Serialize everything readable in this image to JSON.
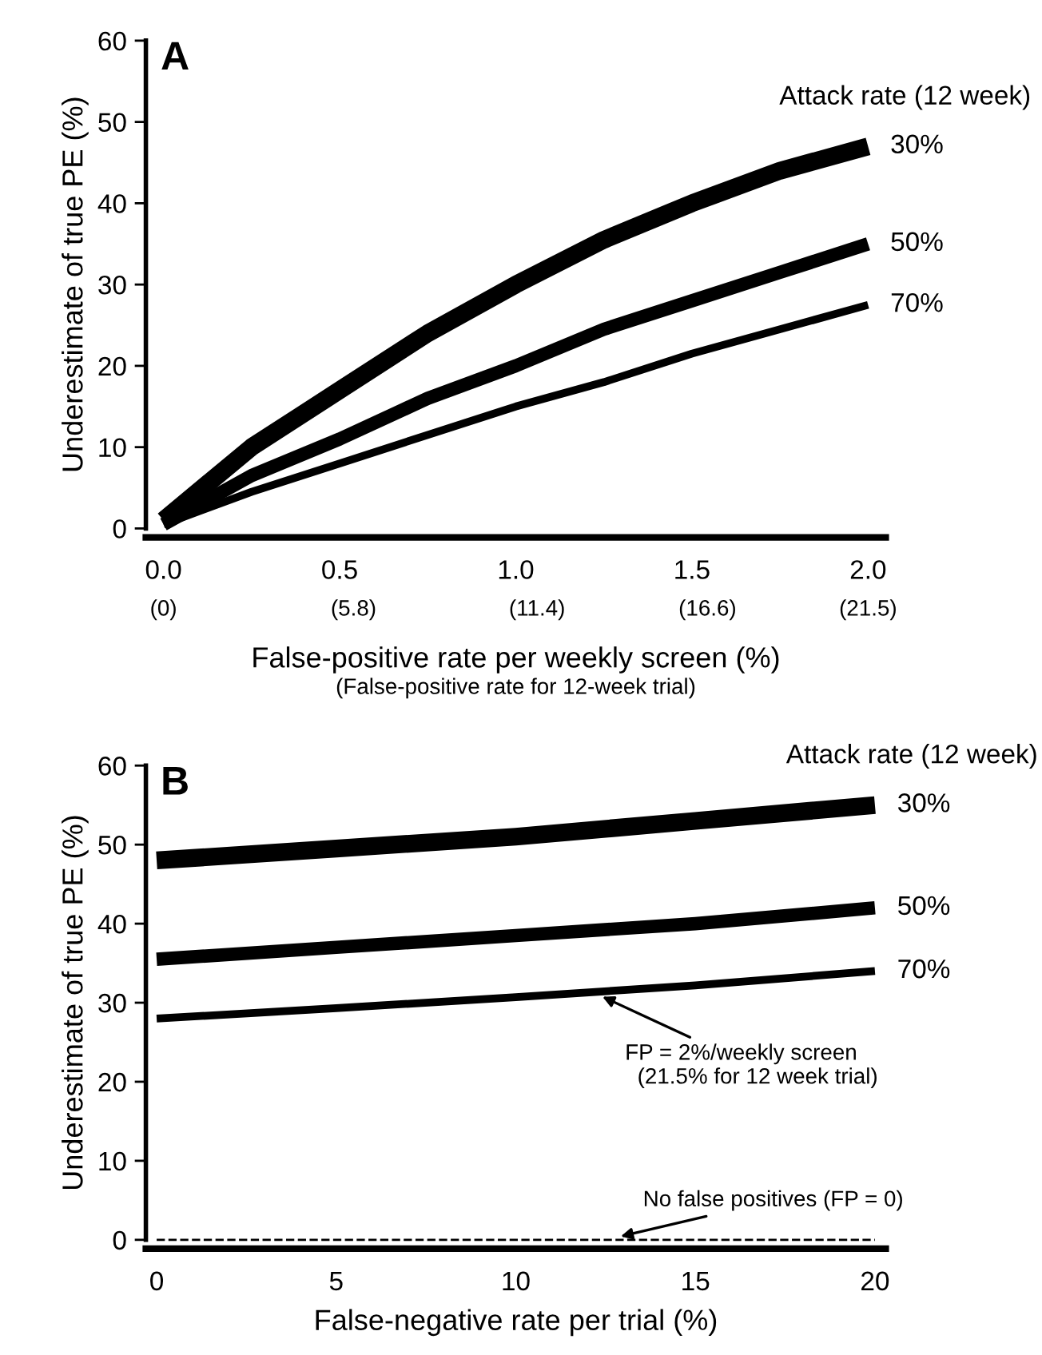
{
  "chart_data": [
    {
      "type": "line",
      "title": "A",
      "xlabel": "False-positive rate per weekly screen (%)",
      "ylabel": "Underestimate of true PE (%)",
      "legend_title": "Attack rate (12 week)",
      "x": [
        0,
        0.25,
        0.5,
        0.75,
        1.0,
        1.25,
        1.5,
        1.75,
        2.0
      ],
      "series": [
        {
          "name": "30%",
          "color": "#000000",
          "values": [
            1,
            10,
            17,
            24,
            30,
            35.5,
            40,
            44,
            47
          ]
        },
        {
          "name": "50%",
          "color": "#000000",
          "values": [
            0.5,
            6.5,
            11,
            16,
            20,
            24.5,
            28,
            31.5,
            35
          ]
        },
        {
          "name": "70%",
          "color": "#000000",
          "values": [
            0.5,
            4.5,
            8,
            11.5,
            15,
            18,
            21.5,
            24.5,
            27.5
          ]
        }
      ],
      "xlim": [
        -0.05,
        2.05
      ],
      "ylim": [
        0,
        60
      ],
      "xticks": [
        {
          "value": 0,
          "label": "0.0"
        },
        {
          "value": 0.5,
          "label": "0.5"
        },
        {
          "value": 1.0,
          "label": "1.0"
        },
        {
          "value": 1.5,
          "label": "1.5"
        },
        {
          "value": 2.0,
          "label": "2.0"
        }
      ],
      "x2lim": [
        -0.5375,
        22.0375
      ],
      "x2ticks": [
        {
          "value": 0,
          "label": "(0)"
        },
        {
          "value": 5.8,
          "label": "(5.8)"
        },
        {
          "value": 11.4,
          "label": "(11.4)"
        },
        {
          "value": 16.6,
          "label": "(16.6)"
        },
        {
          "value": 21.5,
          "label": "(21.5)"
        }
      ],
      "yticks": [
        0,
        10,
        20,
        30,
        40,
        50,
        60
      ],
      "annotations": [
        "(False-positive rate for 12-week trial)"
      ],
      "grid": false,
      "legend": false,
      "marker": "none",
      "line_style": "solid"
    },
    {
      "type": "line",
      "title": "B",
      "xlabel": "False-negative rate per trial (%)",
      "ylabel": "Underestimate of true PE (%)",
      "legend_title": "Attack rate (12 week)",
      "x": [
        0,
        5,
        10,
        15,
        20
      ],
      "series": [
        {
          "name": "30%",
          "color": "#000000",
          "values": [
            48,
            49.5,
            51,
            53,
            55
          ]
        },
        {
          "name": "50%",
          "color": "#000000",
          "values": [
            35.5,
            37,
            38.5,
            40,
            42
          ]
        },
        {
          "name": "70%",
          "color": "#000000",
          "values": [
            28,
            29.3,
            30.7,
            32.2,
            34
          ]
        },
        {
          "color": "#000000",
          "values": [
            0,
            0,
            0,
            0,
            0
          ],
          "line_style": "dashed"
        }
      ],
      "xlim": [
        -0.3,
        20.3
      ],
      "ylim": [
        0,
        60
      ],
      "xticks": [
        0,
        5,
        10,
        15,
        20
      ],
      "yticks": [
        0,
        10,
        20,
        30,
        40,
        50,
        60
      ],
      "annotations": [
        {
          "text": "FP = 2%/weekly screen\n  (21.5% for 12 week trial)",
          "x": 12.3,
          "y": 31
        },
        {
          "text": "No false positives (FP = 0)",
          "x": 12.8,
          "y": 0.3
        }
      ],
      "grid": false,
      "legend": false,
      "marker": "none",
      "line_style": "solid"
    }
  ]
}
